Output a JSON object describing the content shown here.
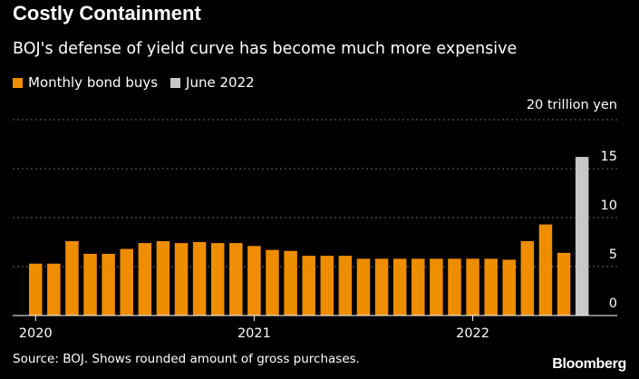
{
  "chart_data": {
    "type": "bar",
    "title": "Costly Containment",
    "subtitle": "BOJ's defense of yield curve has become much more expensive",
    "unit_label": "20 trillion yen",
    "source": "Source: BOJ. Shows rounded amount of gross purchases.",
    "brand": "Bloomberg",
    "ylim": [
      0,
      20
    ],
    "y_ticks": [
      0,
      5,
      10,
      15
    ],
    "grid": true,
    "legend_position": "top-left",
    "x_tick_labels": [
      {
        "label": "2020",
        "index": 0
      },
      {
        "label": "2021",
        "index": 12
      },
      {
        "label": "2022",
        "index": 24
      }
    ],
    "series": [
      {
        "name": "Monthly bond buys",
        "color": "#ee8d00",
        "values": [
          5.3,
          5.3,
          7.6,
          6.3,
          6.3,
          6.8,
          7.4,
          7.6,
          7.4,
          7.5,
          7.4,
          7.4,
          7.1,
          6.7,
          6.6,
          6.1,
          6.1,
          6.1,
          5.8,
          5.8,
          5.8,
          5.8,
          5.8,
          5.8,
          5.8,
          5.8,
          5.7,
          7.6,
          9.3,
          6.4,
          null
        ]
      },
      {
        "name": "June 2022",
        "color": "#c8c8c8",
        "values": [
          null,
          null,
          null,
          null,
          null,
          null,
          null,
          null,
          null,
          null,
          null,
          null,
          null,
          null,
          null,
          null,
          null,
          null,
          null,
          null,
          null,
          null,
          null,
          null,
          null,
          null,
          null,
          null,
          null,
          null,
          16.2
        ]
      }
    ]
  }
}
